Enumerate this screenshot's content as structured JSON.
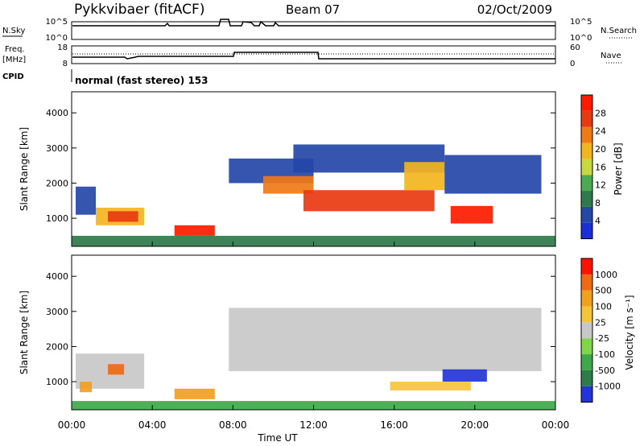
{
  "header": {
    "title": "Pykkvibaer (fitACF)",
    "beam": "Beam 07",
    "date": "02/Oct/2009"
  },
  "noise_panel": {
    "left_label": "N.Sky",
    "left_ticks": [
      "10^5",
      "10^0"
    ],
    "right_label": "N.Search",
    "right_ticks": [
      "10^5",
      "10^0"
    ]
  },
  "freq_panel": {
    "left_label_line1": "Freq.",
    "left_label_line2": "[MHz]",
    "left_ticks": [
      "18",
      "8"
    ],
    "right_label": "Nave",
    "right_ticks": [
      "60",
      "0"
    ]
  },
  "cpid": {
    "label": "CPID",
    "text": "normal (fast stereo) 153"
  },
  "chart_data": [
    {
      "type": "heatmap",
      "name": "power",
      "ylabel": "Slant Range [km]",
      "ytick_labels": [
        "1000",
        "2000",
        "3000",
        "4000"
      ],
      "y_ticks": [
        1000,
        2000,
        3000,
        4000
      ],
      "ylim": [
        200,
        4600
      ],
      "xlim": [
        0,
        24
      ],
      "colorbar_label": "Power [dB]",
      "colorbar_ticks": [
        "4",
        "8",
        "12",
        "16",
        "20",
        "24",
        "28"
      ],
      "colors": [
        "#1a2fd8",
        "#2447a8",
        "#2f7a4a",
        "#4cab52",
        "#c7d93e",
        "#f3b51f",
        "#f07a16",
        "#e83a10",
        "#ff1a00"
      ],
      "echo_regions": [
        {
          "t0": 0.2,
          "t1": 1.2,
          "r0": 1100,
          "r1": 1900,
          "level": 1
        },
        {
          "t0": 1.2,
          "t1": 3.6,
          "r0": 800,
          "r1": 1300,
          "level": 5
        },
        {
          "t0": 1.8,
          "t1": 3.3,
          "r0": 900,
          "r1": 1200,
          "level": 7
        },
        {
          "t0": 5.1,
          "t1": 7.1,
          "r0": 500,
          "r1": 800,
          "level": 8
        },
        {
          "t0": 7.8,
          "t1": 12.0,
          "r0": 2000,
          "r1": 2700,
          "level": 1
        },
        {
          "t0": 9.5,
          "t1": 12.0,
          "r0": 1700,
          "r1": 2200,
          "level": 6
        },
        {
          "t0": 11.5,
          "t1": 18.0,
          "r0": 1200,
          "r1": 1800,
          "level": 7
        },
        {
          "t0": 11.0,
          "t1": 18.5,
          "r0": 2300,
          "r1": 3100,
          "level": 1
        },
        {
          "t0": 16.5,
          "t1": 18.5,
          "r0": 1800,
          "r1": 2600,
          "level": 5
        },
        {
          "t0": 18.5,
          "t1": 23.3,
          "r0": 1700,
          "r1": 2800,
          "level": 1
        },
        {
          "t0": 18.8,
          "t1": 20.9,
          "r0": 850,
          "r1": 1350,
          "level": 8
        },
        {
          "t0": 0.0,
          "t1": 24.0,
          "r0": 200,
          "r1": 500,
          "level": 2
        }
      ]
    },
    {
      "type": "heatmap",
      "name": "velocity",
      "ylabel": "Slant Range [km]",
      "ytick_labels": [
        "1000",
        "2000",
        "3000",
        "4000"
      ],
      "y_ticks": [
        1000,
        2000,
        3000,
        4000
      ],
      "ylim": [
        200,
        4600
      ],
      "xlim": [
        0,
        24
      ],
      "colorbar_label": "Velocity [m s⁻¹]",
      "colorbar_ticks": [
        "1000",
        "500",
        "100",
        "25",
        "-25",
        "-100",
        "-500",
        "-1000"
      ],
      "colors": [
        "#2235d8",
        "#2d7d4a",
        "#3fa84a",
        "#7ed64a",
        "#c8c8c8",
        "#f5c43a",
        "#f2a020",
        "#ef6a14",
        "#ff1200"
      ],
      "echo_regions": [
        {
          "t0": 0.2,
          "t1": 3.6,
          "r0": 800,
          "r1": 1800,
          "level": 4
        },
        {
          "t0": 0.4,
          "t1": 1.0,
          "r0": 700,
          "r1": 1000,
          "level": 6
        },
        {
          "t0": 1.8,
          "t1": 2.6,
          "r0": 1200,
          "r1": 1500,
          "level": 7
        },
        {
          "t0": 5.1,
          "t1": 7.1,
          "r0": 500,
          "r1": 800,
          "level": 6
        },
        {
          "t0": 7.8,
          "t1": 23.3,
          "r0": 1300,
          "r1": 3100,
          "level": 4
        },
        {
          "t0": 18.4,
          "t1": 20.6,
          "r0": 1000,
          "r1": 1350,
          "level": 0
        },
        {
          "t0": 15.8,
          "t1": 19.8,
          "r0": 750,
          "r1": 1000,
          "level": 5
        },
        {
          "t0": 0.0,
          "t1": 24.0,
          "r0": 200,
          "r1": 450,
          "level": 2
        }
      ]
    }
  ],
  "x_axis": {
    "ticks": [
      "00:00",
      "04:00",
      "08:00",
      "12:00",
      "16:00",
      "20:00",
      "00:00"
    ],
    "tick_hours": [
      0,
      4,
      8,
      12,
      16,
      20,
      24
    ],
    "label": "Time UT"
  }
}
